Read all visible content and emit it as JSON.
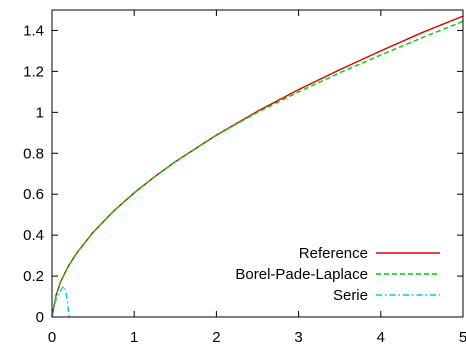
{
  "chart_data": {
    "type": "line",
    "title": "",
    "xlabel": "",
    "ylabel": "",
    "xlim": [
      0,
      5
    ],
    "ylim": [
      0,
      1.5
    ],
    "x_ticks": [
      0,
      1,
      2,
      3,
      4,
      5
    ],
    "x_tick_labels": [
      "0",
      "1",
      "2",
      "3",
      "4",
      "5"
    ],
    "y_ticks": [
      0,
      0.2,
      0.4,
      0.6,
      0.8,
      1.0,
      1.2,
      1.4
    ],
    "y_tick_labels": [
      "0",
      "0.2",
      "0.4",
      "0.6",
      "0.8",
      "1",
      "1.2",
      "1.4"
    ],
    "grid": false,
    "legend_position": "bottom-right",
    "series": [
      {
        "name": "Reference",
        "color": "#e00000",
        "dash": "solid",
        "x": [
          0,
          0.05,
          0.1,
          0.2,
          0.3,
          0.5,
          0.75,
          1.0,
          1.25,
          1.5,
          2.0,
          2.5,
          3.0,
          3.5,
          4.0,
          4.5,
          5.0
        ],
        "y": [
          0,
          0.107,
          0.168,
          0.249,
          0.312,
          0.414,
          0.518,
          0.607,
          0.686,
          0.759,
          0.889,
          1.005,
          1.111,
          1.208,
          1.3,
          1.389,
          1.47
        ]
      },
      {
        "name": "Borel-Pade-Laplace",
        "color": "#00cc00",
        "dash": "dashed",
        "x": [
          0,
          0.05,
          0.1,
          0.2,
          0.3,
          0.5,
          0.75,
          1.0,
          1.25,
          1.5,
          2.0,
          2.5,
          3.0,
          3.5,
          4.0,
          4.5,
          5.0
        ],
        "y": [
          0,
          0.107,
          0.168,
          0.249,
          0.312,
          0.414,
          0.518,
          0.607,
          0.686,
          0.759,
          0.889,
          1.0,
          1.1,
          1.193,
          1.28,
          1.364,
          1.445
        ]
      },
      {
        "name": "Serie",
        "color": "#00cccc",
        "dash": "dash-dot",
        "x": [
          0,
          0.04,
          0.08,
          0.12,
          0.15,
          0.17,
          0.19,
          0.2,
          0.21
        ],
        "y": [
          0,
          0.075,
          0.115,
          0.14,
          0.15,
          0.12,
          0.07,
          0.03,
          0
        ]
      }
    ]
  }
}
